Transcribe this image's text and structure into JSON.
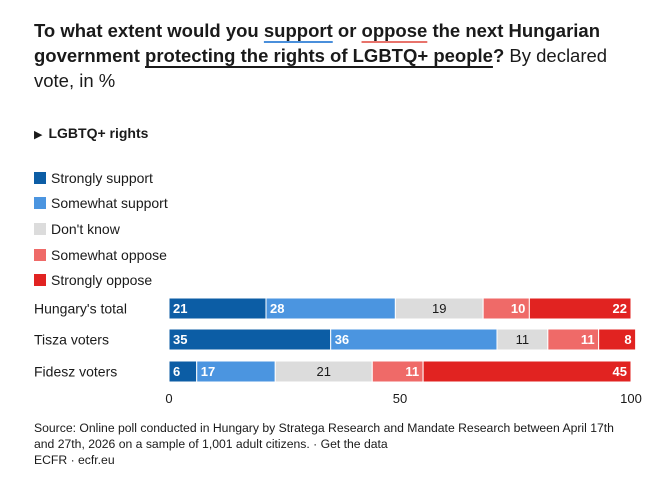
{
  "title": {
    "p1": "To what extent would you ",
    "support": "support",
    "p2": " or ",
    "oppose": "oppose",
    "p3": " the next Hungarian government ",
    "topic": "protecting the rights of LGBTQ+ people",
    "p4": "?",
    "subtitle": " By declared vote, in %"
  },
  "toggle": {
    "icon": "play-triangle-icon",
    "label": "LGBTQ+ rights"
  },
  "chart_data": {
    "type": "bar",
    "orientation": "horizontal",
    "stacked": true,
    "categories": [
      "Hungary's total",
      "Tisza voters",
      "Fidesz voters"
    ],
    "series": [
      {
        "name": "Strongly support",
        "color": "#0c5da5",
        "values": [
          21,
          35,
          6
        ]
      },
      {
        "name": "Somewhat support",
        "color": "#4b95e0",
        "values": [
          28,
          36,
          17
        ]
      },
      {
        "name": "Don't know",
        "color": "#dcdcdc",
        "values": [
          19,
          11,
          21
        ]
      },
      {
        "name": "Somewhat oppose",
        "color": "#ef6a68",
        "values": [
          10,
          11,
          11
        ]
      },
      {
        "name": "Strongly oppose",
        "color": "#e12321",
        "values": [
          22,
          8,
          45
        ]
      }
    ],
    "xlim": [
      0,
      100
    ],
    "xticks": [
      "0",
      "50",
      "100"
    ],
    "legend_position": "top-left"
  },
  "footer": {
    "source": "Source: Online poll conducted in Hungary by Stratega Research and Mandate Research between April 17th and 27th, 2026 on a sample of 1,001 adult citizens. · Get the data",
    "credit": "ECFR · ecfr.eu"
  }
}
